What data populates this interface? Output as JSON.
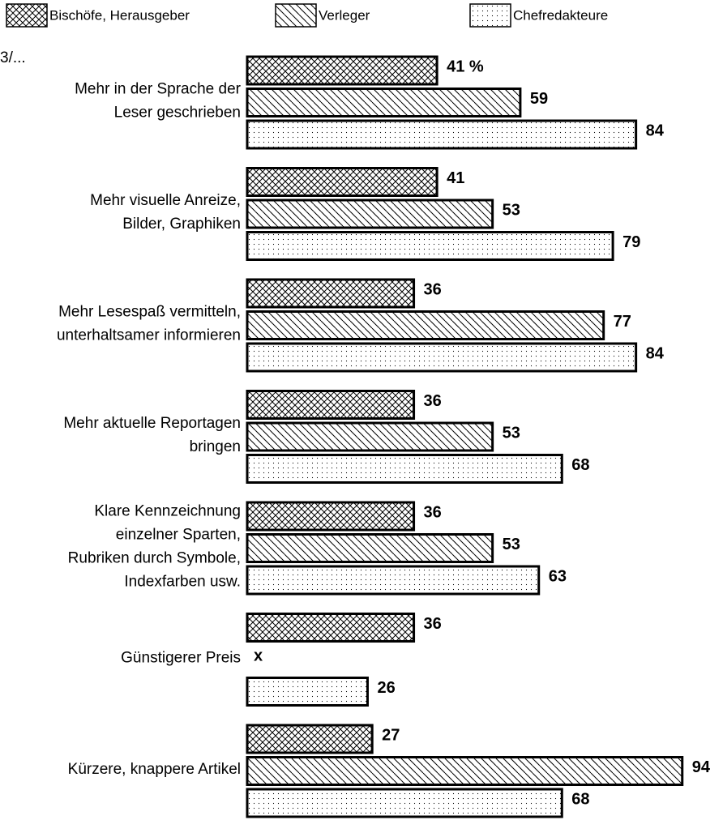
{
  "chart_data": {
    "type": "bar",
    "orientation": "horizontal",
    "note": "3/...",
    "categories": [
      "Mehr in der Sprache der\nLeser geschrieben",
      "Mehr visuelle Anreize,\nBilder, Graphiken",
      "Mehr Lesespaß vermitteln,\nunterhaltsamer informieren",
      "Mehr aktuelle Reportagen\nbringen",
      "Klare Kennzeichnung\neinzelner Sparten,\nRubriken durch Symbole,\nIndexfarben usw.",
      "Günstigerer Preis",
      "Kürzere, knappere Artikel"
    ],
    "series": [
      {
        "name": "Bischöfe, Herausgeber",
        "pattern": "crosshatch",
        "color": "#000000",
        "values": [
          41,
          41,
          36,
          36,
          36,
          36,
          27
        ],
        "value_labels": [
          "41 %",
          "41",
          "36",
          "36",
          "36",
          "36",
          "27"
        ]
      },
      {
        "name": "Verleger",
        "pattern": "diagonal",
        "color": "#000000",
        "values": [
          59,
          53,
          77,
          53,
          53,
          null,
          94
        ],
        "value_labels": [
          "59",
          "53",
          "77",
          "53",
          "53",
          "x",
          "94"
        ]
      },
      {
        "name": "Chefredakteure",
        "pattern": "dots",
        "color": "#000000",
        "values": [
          84,
          79,
          84,
          68,
          63,
          26,
          68
        ],
        "value_labels": [
          "84",
          "79",
          "84",
          "68",
          "63",
          "26",
          "68"
        ]
      }
    ]
  }
}
